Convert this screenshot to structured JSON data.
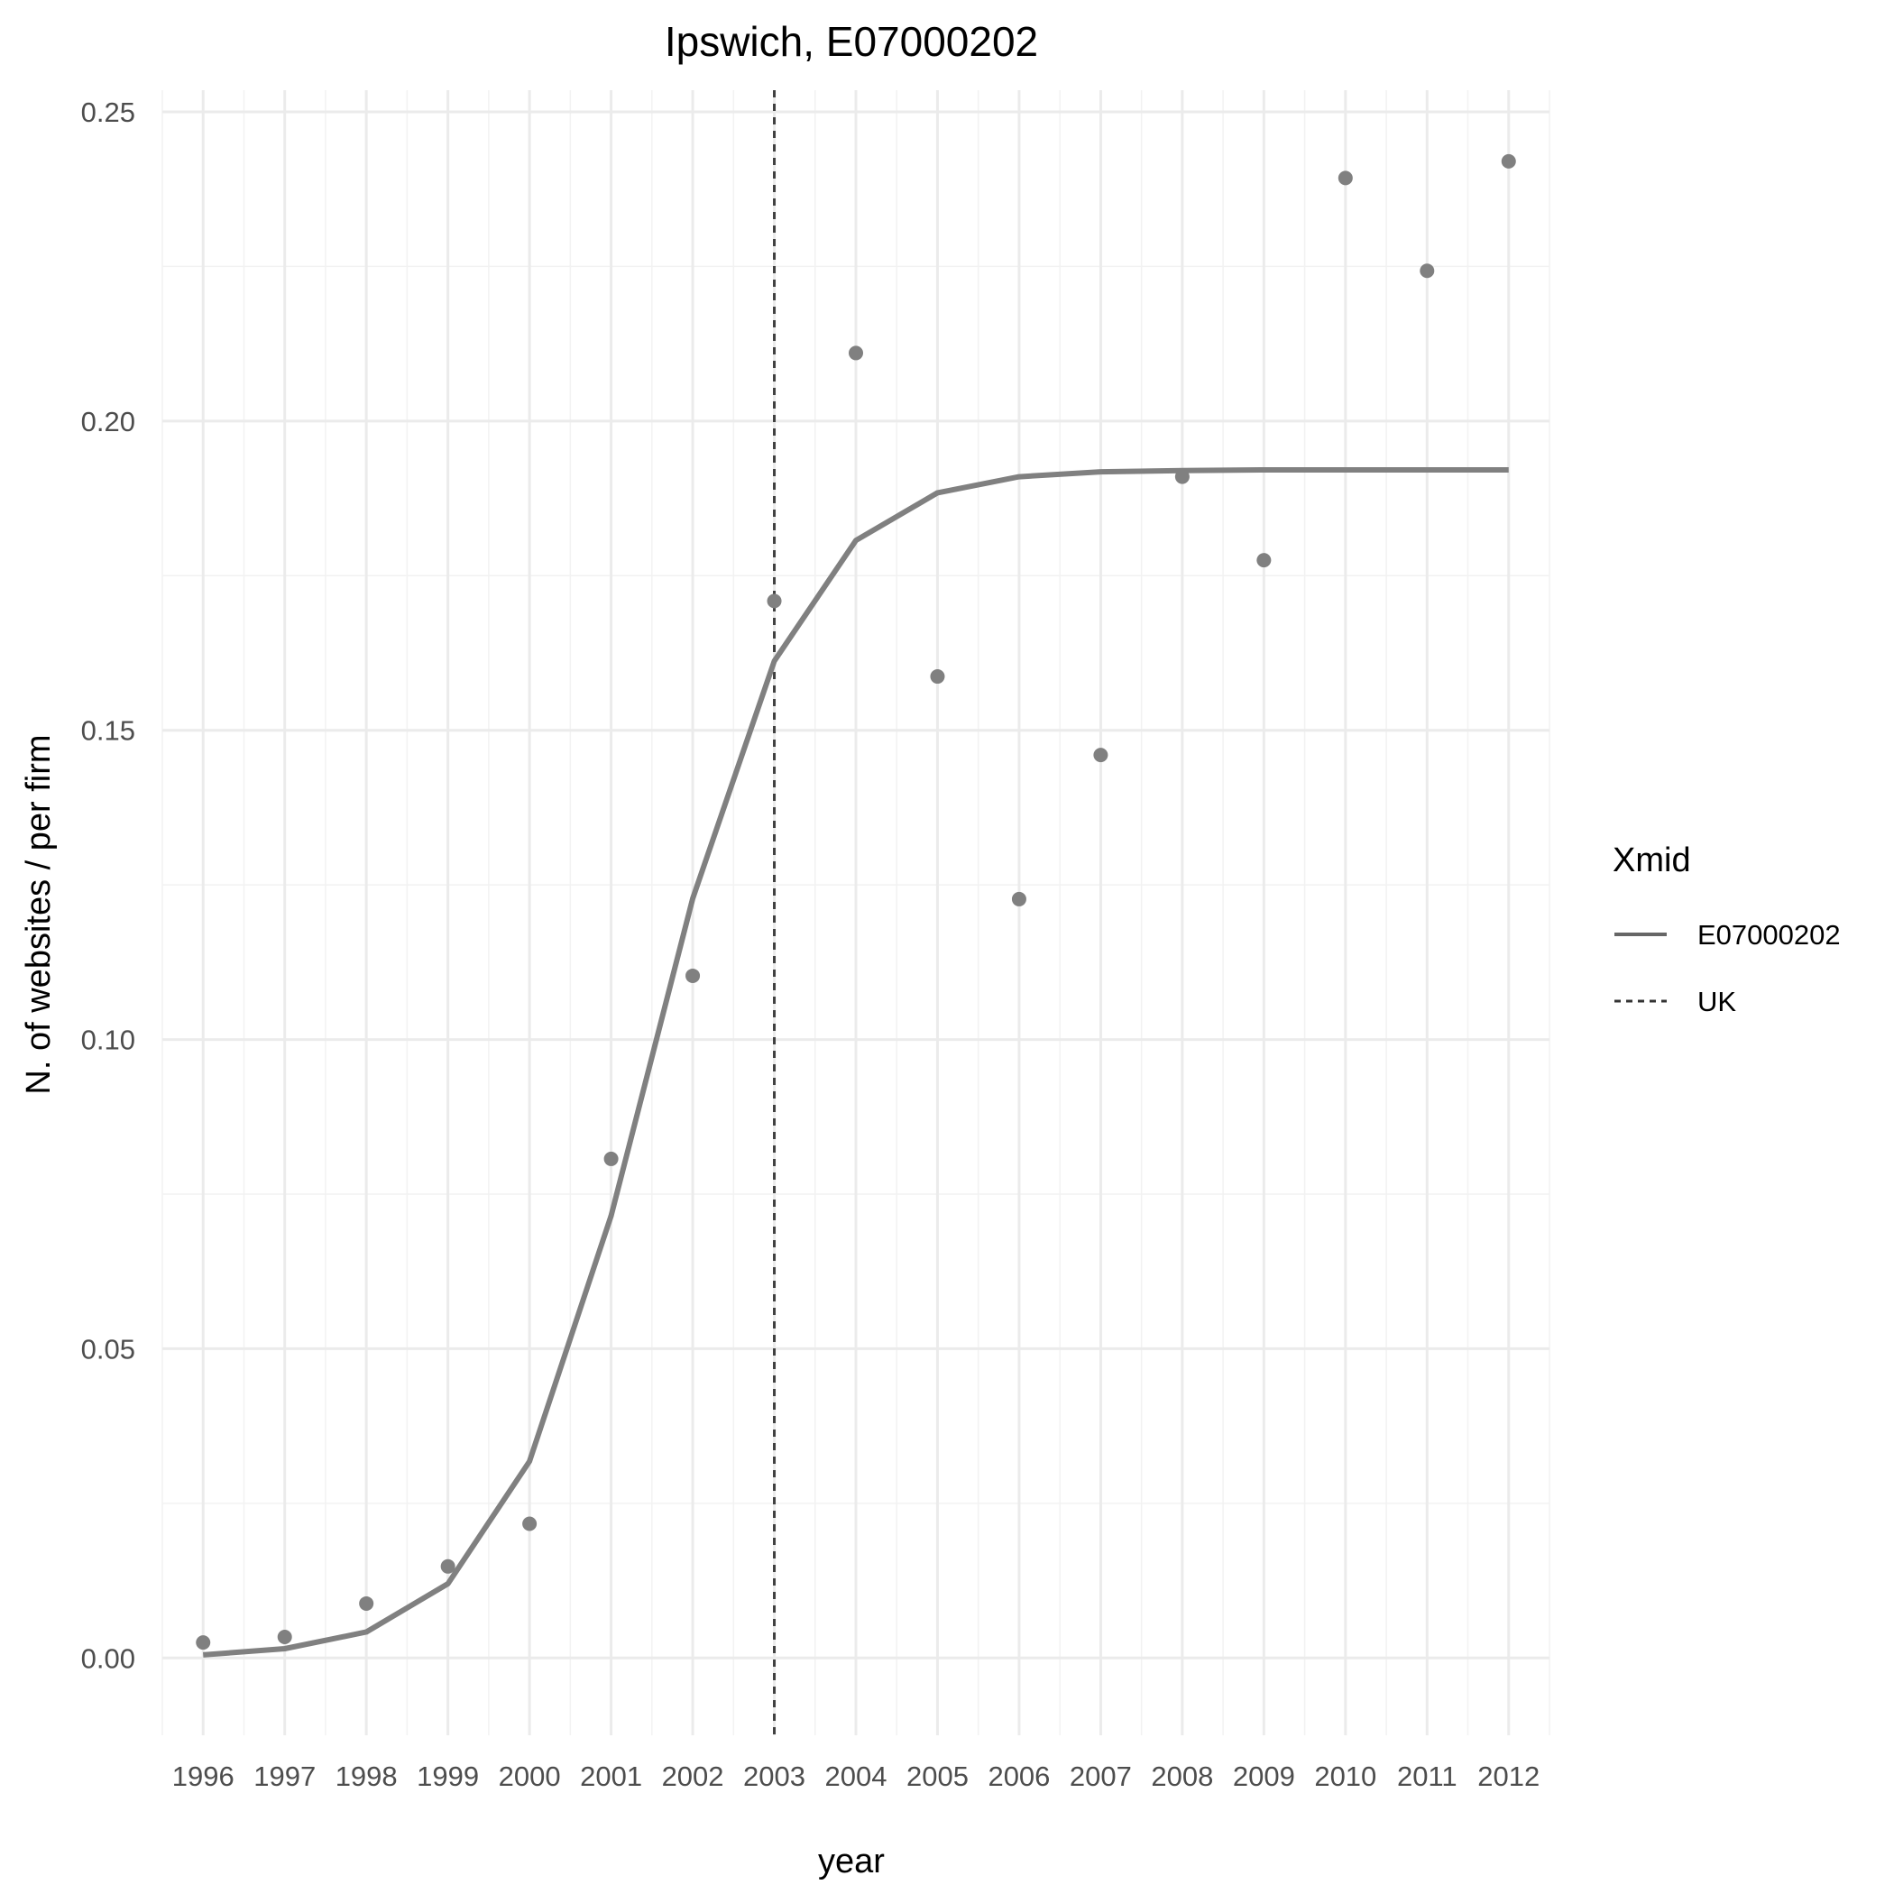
{
  "chart_data": {
    "type": "line",
    "title": "Ipswich, E07000202",
    "xlabel": "year",
    "ylabel": "N. of websites / per firm",
    "x": [
      1996,
      1997,
      1998,
      1999,
      2000,
      2001,
      2002,
      2003,
      2004,
      2005,
      2006,
      2007,
      2008,
      2009,
      2010,
      2011,
      2012
    ],
    "x_tick_labels": [
      "1996",
      "1997",
      "1998",
      "1999",
      "2000",
      "2001",
      "2002",
      "2003",
      "2004",
      "2005",
      "2006",
      "2007",
      "2008",
      "2009",
      "2010",
      "2011",
      "2012"
    ],
    "xlim": [
      1995.5,
      2012.5
    ],
    "ylim": [
      -0.0125,
      0.2535
    ],
    "y_ticks": [
      0.0,
      0.05,
      0.1,
      0.15,
      0.2,
      0.25
    ],
    "y_tick_labels": [
      "0.00",
      "0.05",
      "0.10",
      "0.15",
      "0.20",
      "0.25"
    ],
    "grid": true,
    "legend": {
      "title": "Xmid",
      "position": "right",
      "entries": [
        {
          "label": "E07000202",
          "style": "solid"
        },
        {
          "label": "UK",
          "style": "dashed"
        }
      ]
    },
    "series": [
      {
        "type": "line",
        "style": "solid",
        "color": "#808080",
        "values": [
          0.0005,
          0.0015,
          0.0042,
          0.012,
          0.0318,
          0.0715,
          0.1228,
          0.1612,
          0.1807,
          0.1884,
          0.191,
          0.1918,
          0.192,
          0.1921,
          0.1921,
          0.1921,
          0.1921
        ]
      },
      {
        "type": "scatter",
        "color": "#808080",
        "values": [
          0.0025,
          0.0034,
          0.0088,
          0.0148,
          0.0217,
          0.0807,
          0.1103,
          0.1709,
          0.211,
          0.1587,
          0.1227,
          0.146,
          0.191,
          0.1775,
          0.2393,
          0.2243,
          0.242
        ]
      }
    ],
    "reference_lines": [
      {
        "orientation": "vertical",
        "x": 2003,
        "style": "dashed",
        "color": "#404040"
      }
    ]
  }
}
